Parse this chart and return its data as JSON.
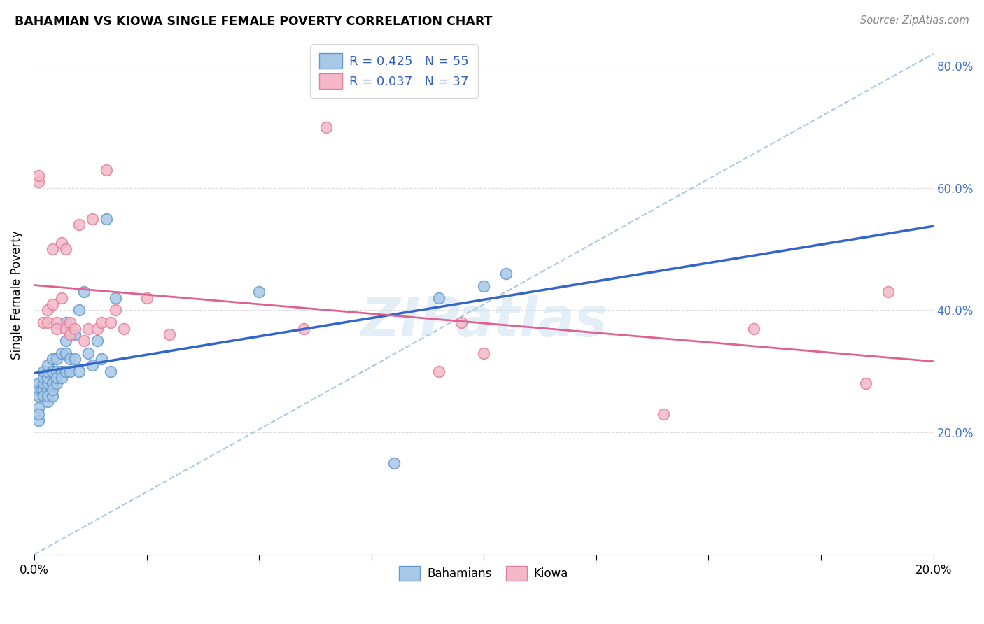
{
  "title": "BAHAMIAN VS KIOWA SINGLE FEMALE POVERTY CORRELATION CHART",
  "source": "Source: ZipAtlas.com",
  "ylabel": "Single Female Poverty",
  "yticks": [
    0.0,
    0.2,
    0.4,
    0.6,
    0.8
  ],
  "ytick_labels": [
    "",
    "20.0%",
    "40.0%",
    "60.0%",
    "80.0%"
  ],
  "xlim": [
    0.0,
    0.2
  ],
  "ylim": [
    0.0,
    0.85
  ],
  "xticks": [
    0.0,
    0.025,
    0.05,
    0.075,
    0.1,
    0.125,
    0.15,
    0.175,
    0.2
  ],
  "background_color": "#ffffff",
  "watermark_text": "ZIPatlas",
  "legend_R_blue": "R = 0.425",
  "legend_N_blue": "N = 55",
  "legend_R_pink": "R = 0.037",
  "legend_N_pink": "N = 37",
  "blue_color": "#a8c8e8",
  "pink_color": "#f4b8c8",
  "blue_edge_color": "#6699cc",
  "pink_edge_color": "#e080a0",
  "blue_line_color": "#3366cc",
  "pink_line_color": "#e06090",
  "dashed_line_color": "#a8c8e8",
  "grid_color": "#dddddd",
  "bahamians_x": [
    0.0005,
    0.001,
    0.001,
    0.001,
    0.001,
    0.001,
    0.0015,
    0.002,
    0.002,
    0.002,
    0.002,
    0.002,
    0.002,
    0.003,
    0.003,
    0.003,
    0.003,
    0.003,
    0.003,
    0.003,
    0.004,
    0.004,
    0.004,
    0.004,
    0.004,
    0.005,
    0.005,
    0.005,
    0.005,
    0.006,
    0.006,
    0.006,
    0.007,
    0.007,
    0.007,
    0.007,
    0.008,
    0.008,
    0.009,
    0.009,
    0.01,
    0.01,
    0.011,
    0.012,
    0.013,
    0.014,
    0.015,
    0.016,
    0.017,
    0.018,
    0.05,
    0.08,
    0.09,
    0.1,
    0.105
  ],
  "bahamians_y": [
    0.27,
    0.26,
    0.28,
    0.22,
    0.24,
    0.23,
    0.27,
    0.26,
    0.27,
    0.28,
    0.29,
    0.3,
    0.26,
    0.27,
    0.28,
    0.29,
    0.3,
    0.31,
    0.25,
    0.26,
    0.28,
    0.3,
    0.32,
    0.26,
    0.27,
    0.28,
    0.3,
    0.29,
    0.32,
    0.3,
    0.29,
    0.33,
    0.3,
    0.35,
    0.33,
    0.38,
    0.3,
    0.32,
    0.32,
    0.36,
    0.3,
    0.4,
    0.43,
    0.33,
    0.31,
    0.35,
    0.32,
    0.55,
    0.3,
    0.42,
    0.43,
    0.15,
    0.42,
    0.44,
    0.46
  ],
  "kiowa_x": [
    0.001,
    0.001,
    0.002,
    0.003,
    0.003,
    0.004,
    0.004,
    0.005,
    0.005,
    0.006,
    0.006,
    0.007,
    0.007,
    0.008,
    0.008,
    0.009,
    0.01,
    0.011,
    0.012,
    0.013,
    0.014,
    0.015,
    0.016,
    0.017,
    0.018,
    0.02,
    0.025,
    0.03,
    0.06,
    0.065,
    0.09,
    0.095,
    0.1,
    0.14,
    0.16,
    0.185,
    0.19
  ],
  "kiowa_y": [
    0.61,
    0.62,
    0.38,
    0.4,
    0.38,
    0.41,
    0.5,
    0.38,
    0.37,
    0.42,
    0.51,
    0.37,
    0.5,
    0.36,
    0.38,
    0.37,
    0.54,
    0.35,
    0.37,
    0.55,
    0.37,
    0.38,
    0.63,
    0.38,
    0.4,
    0.37,
    0.42,
    0.36,
    0.37,
    0.7,
    0.3,
    0.38,
    0.33,
    0.23,
    0.37,
    0.28,
    0.43
  ]
}
